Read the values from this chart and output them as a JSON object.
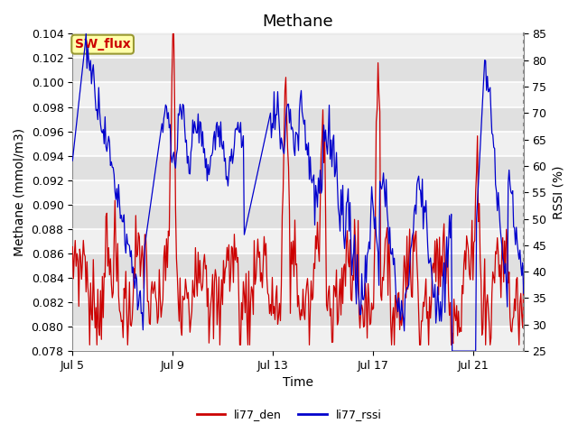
{
  "title": "Methane",
  "xlabel": "Time",
  "ylabel_left": "Methane (mmol/m3)",
  "ylabel_right": "RSSI (%)",
  "ylim_left": [
    0.078,
    0.104
  ],
  "ylim_right": [
    25,
    85
  ],
  "yticks_left": [
    0.078,
    0.08,
    0.082,
    0.084,
    0.086,
    0.088,
    0.09,
    0.092,
    0.094,
    0.096,
    0.098,
    0.1,
    0.102,
    0.104
  ],
  "yticks_right": [
    25,
    30,
    35,
    40,
    45,
    50,
    55,
    60,
    65,
    70,
    75,
    80,
    85
  ],
  "xtick_labels": [
    "Jul 5",
    "Jul 9",
    "Jul 13",
    "Jul 17",
    "Jul 21"
  ],
  "xtick_positions": [
    0,
    4,
    8,
    12,
    16
  ],
  "color_red": "#cc0000",
  "color_blue": "#0000cc",
  "legend_label_red": "li77_den",
  "legend_label_blue": "li77_rssi",
  "sw_flux_label": "SW_flux",
  "sw_flux_bg": "#ffffaa",
  "sw_flux_border": "#999933",
  "sw_flux_text_color": "#cc0000",
  "bg_color": "#ffffff",
  "plot_bg_light": "#f0f0f0",
  "plot_bg_dark": "#e0e0e0",
  "grid_color": "#ffffff",
  "title_fontsize": 13,
  "axis_label_fontsize": 10,
  "tick_fontsize": 9,
  "n_points": 500,
  "xlim": [
    0,
    18
  ]
}
